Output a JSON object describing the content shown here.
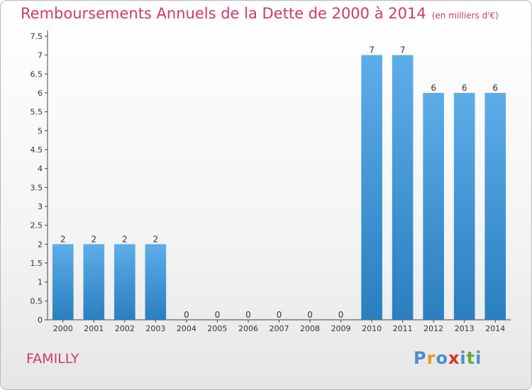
{
  "chart_data": {
    "type": "bar",
    "title": "Remboursements Annuels de la Dette de 2000 à 2014",
    "unit_note": "(en milliers d'€)",
    "categories": [
      "2000",
      "2001",
      "2002",
      "2003",
      "2004",
      "2005",
      "2006",
      "2007",
      "2008",
      "2009",
      "2010",
      "2011",
      "2012",
      "2013",
      "2014"
    ],
    "values": [
      2,
      2,
      2,
      2,
      0,
      0,
      0,
      0,
      0,
      0,
      7,
      7,
      6,
      6,
      6
    ],
    "data_labels": [
      "2",
      "2",
      "2",
      "2",
      "0",
      "0",
      "0",
      "0",
      "0",
      "0",
      "7",
      "7",
      "6",
      "6",
      "6"
    ],
    "y_ticks": [
      "0",
      "0.5",
      "1",
      "1.5",
      "2",
      "2.5",
      "3",
      "3.5",
      "4",
      "4.5",
      "5",
      "5.5",
      "6",
      "6.5",
      "7",
      "7.5"
    ],
    "ylim": [
      0,
      7.5
    ],
    "grid": false,
    "bar_color": "#3d95d8"
  },
  "footer": {
    "town": "FAMILLY",
    "brand_letters": [
      "P",
      "r",
      "o",
      "x",
      "i",
      "t",
      "i"
    ],
    "brand_colors": [
      "#4a8fd1",
      "#e39a23",
      "#4a8fd1",
      "#d6342a",
      "#4a8fd1",
      "#6aa83b",
      "#4a8fd1"
    ]
  }
}
